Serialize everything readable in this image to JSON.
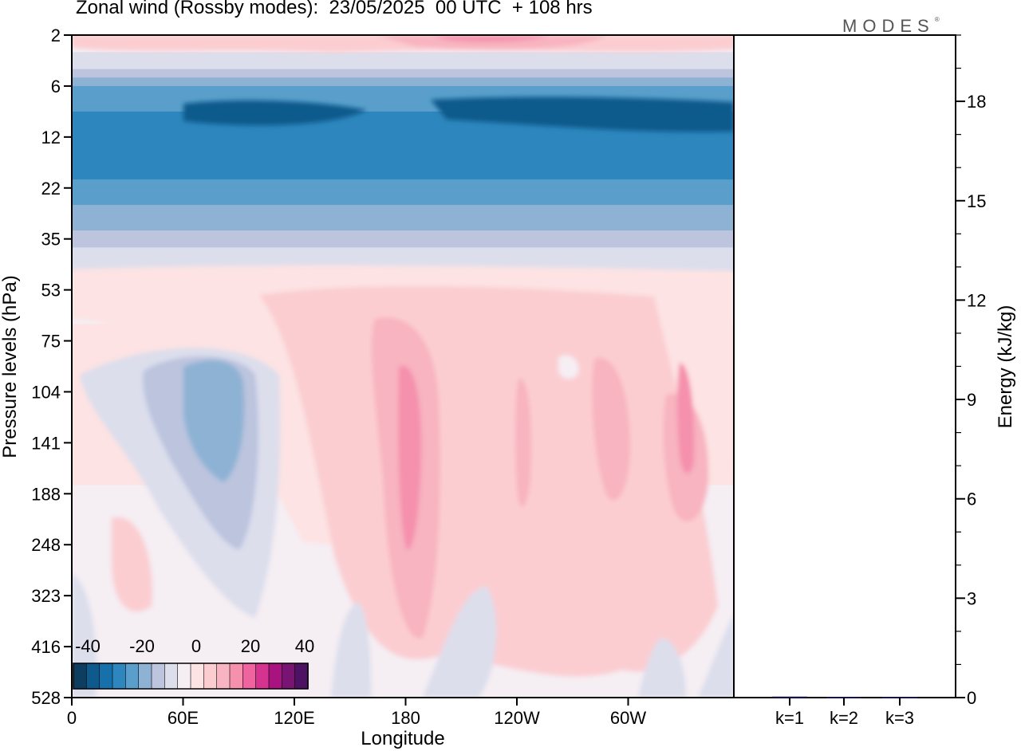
{
  "title": "Zonal wind (Rossby modes):  23/05/2025  00 UTC  + 108 hrs",
  "brand": "MODES",
  "brand_mark": "®",
  "chart_data": [
    {
      "type": "heatmap",
      "xlabel": "Longitude",
      "ylabel": "Pressure levels (hPa)",
      "x_ticks": [
        "0",
        "60E",
        "120E",
        "180",
        "120W",
        "60W"
      ],
      "y_ticks": [
        "2",
        "6",
        "12",
        "22",
        "35",
        "53",
        "75",
        "104",
        "141",
        "188",
        "248",
        "323",
        "416",
        "528"
      ],
      "colorbar": {
        "labels": [
          "-40",
          "-20",
          "0",
          "20",
          "40"
        ],
        "values": [
          -40,
          -35,
          -30,
          -25,
          -20,
          -15,
          -10,
          -5,
          0,
          5,
          10,
          15,
          20,
          25,
          30,
          35,
          40
        ],
        "colors": [
          "#0d3e60",
          "#0e5a8c",
          "#1570ac",
          "#2d86bd",
          "#5a9fcb",
          "#8eb2d4",
          "#bcc4de",
          "#dcdeec",
          "#f5eef3",
          "#fde3e3",
          "#fbcdd1",
          "#f8b4c0",
          "#f590ad",
          "#ef639f",
          "#d6328f",
          "#a8137f",
          "#7a1472",
          "#4e1262"
        ]
      },
      "zonal_means_by_level": [
        {
          "level": "2",
          "value": 8
        },
        {
          "level": "6",
          "value": -18
        },
        {
          "level": "12",
          "value": -28
        },
        {
          "level": "22",
          "value": -22
        },
        {
          "level": "35",
          "value": -10
        },
        {
          "level": "53",
          "value": 0
        },
        {
          "level": "75",
          "value": 4
        },
        {
          "level": "104",
          "value": 4
        },
        {
          "level": "141",
          "value": 4
        },
        {
          "level": "188",
          "value": 2
        },
        {
          "level": "248",
          "value": 2
        },
        {
          "level": "323",
          "value": 1
        },
        {
          "level": "416",
          "value": 0
        },
        {
          "level": "528",
          "value": 0
        }
      ]
    },
    {
      "type": "bar",
      "ylabel": "Energy (kJ/kg)",
      "categories": [
        "k=1",
        "k=2",
        "k=3"
      ],
      "values": [
        0.03,
        0.02,
        0.02
      ],
      "ylim": [
        0,
        20
      ],
      "y_ticks": [
        0,
        3,
        6,
        9,
        12,
        15,
        18
      ]
    }
  ]
}
